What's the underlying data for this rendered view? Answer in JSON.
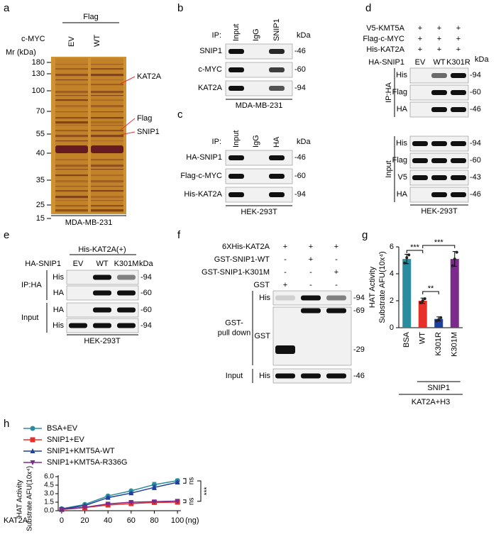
{
  "panels": {
    "a": {
      "label": "a",
      "group": "Flag",
      "row_label": "c-MYC",
      "lanes": [
        "EV",
        "WT"
      ],
      "mr_label": "Mr (kDa)",
      "ladder": [
        180,
        130,
        100,
        70,
        55,
        40,
        35,
        25,
        15
      ],
      "annotations": [
        "KAT2A",
        "Flag",
        "SNIP1"
      ],
      "cell_line": "MDA-MB-231"
    },
    "b": {
      "label": "b",
      "ip_label": "IP:",
      "lanes": [
        "Input",
        "IgG",
        "SNIP1"
      ],
      "kda": "kDa",
      "rows": [
        {
          "name": "SNIP1",
          "mw": "-46"
        },
        {
          "name": "c-MYC",
          "mw": "-60"
        },
        {
          "name": "KAT2A",
          "mw": "-94"
        }
      ],
      "cell_line": "MDA-MB-231"
    },
    "c": {
      "label": "c",
      "ip_label": "IP:",
      "lanes": [
        "Input",
        "IgG",
        "HA"
      ],
      "kda": "kDa",
      "rows": [
        {
          "name": "HA-SNIP1",
          "mw": "-46"
        },
        {
          "name": "Flag-c-MYC",
          "mw": "-60"
        },
        {
          "name": "His-KAT2A",
          "mw": "-94"
        }
      ],
      "cell_line": "HEK-293T"
    },
    "d": {
      "label": "d",
      "conditions": [
        {
          "name": "V5-KMT5A",
          "signs": [
            "+",
            "+",
            "+"
          ]
        },
        {
          "name": "Flag-c-MYC",
          "signs": [
            "+",
            "+",
            "+"
          ]
        },
        {
          "name": "His-KAT2A",
          "signs": [
            "+",
            "+",
            "+"
          ]
        }
      ],
      "lane_label": "HA-SNIP1",
      "lanes": [
        "EV",
        "WT",
        "K301R"
      ],
      "kda": "kDa",
      "groups": [
        {
          "name": "IP:HA",
          "rows": [
            {
              "name": "His",
              "mw": "-94"
            },
            {
              "name": "Flag",
              "mw": "-60"
            },
            {
              "name": "HA",
              "mw": "-46"
            }
          ]
        },
        {
          "name": "Input",
          "rows": [
            {
              "name": "His",
              "mw": "-94"
            },
            {
              "name": "Flag",
              "mw": "-60"
            },
            {
              "name": "V5",
              "mw": "-43"
            },
            {
              "name": "HA",
              "mw": "-46"
            }
          ]
        }
      ],
      "cell_line": "HEK-293T"
    },
    "e": {
      "label": "e",
      "header": "His-KAT2A(+)",
      "lane_label": "HA-SNIP1",
      "lanes": [
        "EV",
        "WT",
        "K301M"
      ],
      "kda": "kDa",
      "groups": [
        {
          "name": "IP:HA",
          "rows": [
            {
              "name": "His",
              "mw": "-94"
            },
            {
              "name": "HA",
              "mw": "-60"
            }
          ]
        },
        {
          "name": "Input",
          "rows": [
            {
              "name": "HA",
              "mw": "-60"
            },
            {
              "name": "His",
              "mw": "-94"
            }
          ]
        }
      ],
      "cell_line": "HEK-293T"
    },
    "f": {
      "label": "f",
      "conditions": [
        {
          "name": "6XHis-KAT2A",
          "signs": [
            "+",
            "+",
            "+"
          ]
        },
        {
          "name": "GST-SNIP1-WT",
          "signs": [
            "-",
            "+",
            "-"
          ]
        },
        {
          "name": "GST-SNIP1-K301M",
          "signs": [
            "-",
            "-",
            "+"
          ]
        },
        {
          "name": "GST",
          "signs": [
            "+",
            "-",
            "-"
          ]
        }
      ],
      "groups": [
        {
          "name": [
            "GST-",
            "pull down"
          ],
          "rows": [
            {
              "name": "His",
              "mw": [
                "-94"
              ]
            },
            {
              "name": "GST",
              "mw": [
                "-69",
                "-29"
              ]
            }
          ]
        },
        {
          "name": [
            "Input"
          ],
          "rows": [
            {
              "name": "His",
              "mw": [
                "-46"
              ]
            }
          ]
        }
      ]
    }
  },
  "chart_data": [
    {
      "type": "bar",
      "panel_label": "g",
      "y_label": [
        "HAT Activity",
        "Substrate AFU(10x⁴)"
      ],
      "categories": [
        "BSA",
        "WT",
        "K301R",
        "K301M"
      ],
      "values": [
        5.1,
        2.0,
        0.65,
        5.1
      ],
      "errors": [
        0.35,
        0.2,
        0.15,
        0.55
      ],
      "points": [
        [
          4.8,
          5.2,
          5.4
        ],
        [
          1.85,
          2.0,
          2.15
        ],
        [
          0.5,
          0.6,
          0.75
        ],
        [
          4.6,
          5.1,
          5.6
        ]
      ],
      "colors": [
        "#2a8c9c",
        "#e8302a",
        "#1f3f9c",
        "#7a2b8c"
      ],
      "ylim": [
        0,
        6
      ],
      "yticks": [
        0,
        2,
        4,
        6
      ],
      "significance": [
        "***",
        "**",
        "***"
      ],
      "group_label": "SNIP1",
      "condition_label": "KAT2A+H3"
    },
    {
      "type": "line",
      "panel_label": "h",
      "y_label": [
        "HAT Activity",
        "Substrate AFU(10x⁴)"
      ],
      "x_label": "KAT2A",
      "x_unit": "(ng)",
      "x": [
        0,
        20,
        40,
        60,
        80,
        100
      ],
      "series": [
        {
          "name": "BSA+EV",
          "color": "#2a8c9c",
          "marker": "circle",
          "values": [
            0.35,
            1.1,
            2.6,
            3.5,
            4.6,
            5.3
          ],
          "errors": [
            0.05,
            0.1,
            0.1,
            0.1,
            0.4,
            0.3
          ]
        },
        {
          "name": "SNIP1+EV",
          "color": "#e8302a",
          "marker": "square",
          "values": [
            0.2,
            0.55,
            1.0,
            1.25,
            1.45,
            1.5
          ],
          "errors": [
            0.05,
            0.05,
            0.1,
            0.1,
            0.15,
            0.15
          ]
        },
        {
          "name": "SNIP1+KMT5A-WT",
          "color": "#1f3f9c",
          "marker": "triangle",
          "values": [
            0.3,
            0.9,
            2.3,
            3.1,
            4.1,
            5.0
          ],
          "errors": [
            0.05,
            0.1,
            0.1,
            0.1,
            0.4,
            0.2
          ]
        },
        {
          "name": "SNIP1+KMT5A-R336G",
          "color": "#7a2b8c",
          "marker": "triangle-down",
          "values": [
            0.25,
            0.6,
            1.2,
            1.5,
            1.6,
            1.7
          ],
          "errors": [
            0.05,
            0.05,
            0.1,
            0.1,
            0.1,
            0.15
          ]
        }
      ],
      "xlim": [
        -3,
        103
      ],
      "xticks": [
        0,
        20,
        40,
        60,
        80,
        100
      ],
      "ylim": [
        0,
        6
      ],
      "yticks": [
        {
          "value": 0,
          "label": "0.0"
        },
        {
          "value": 1.5,
          "label": "1.5"
        },
        {
          "value": 3,
          "label": "3.0"
        },
        {
          "value": 4.5,
          "label": "4.5"
        },
        {
          "value": 6,
          "label": "6.0"
        }
      ],
      "significance": [
        "ns",
        "ns",
        "***"
      ]
    }
  ]
}
